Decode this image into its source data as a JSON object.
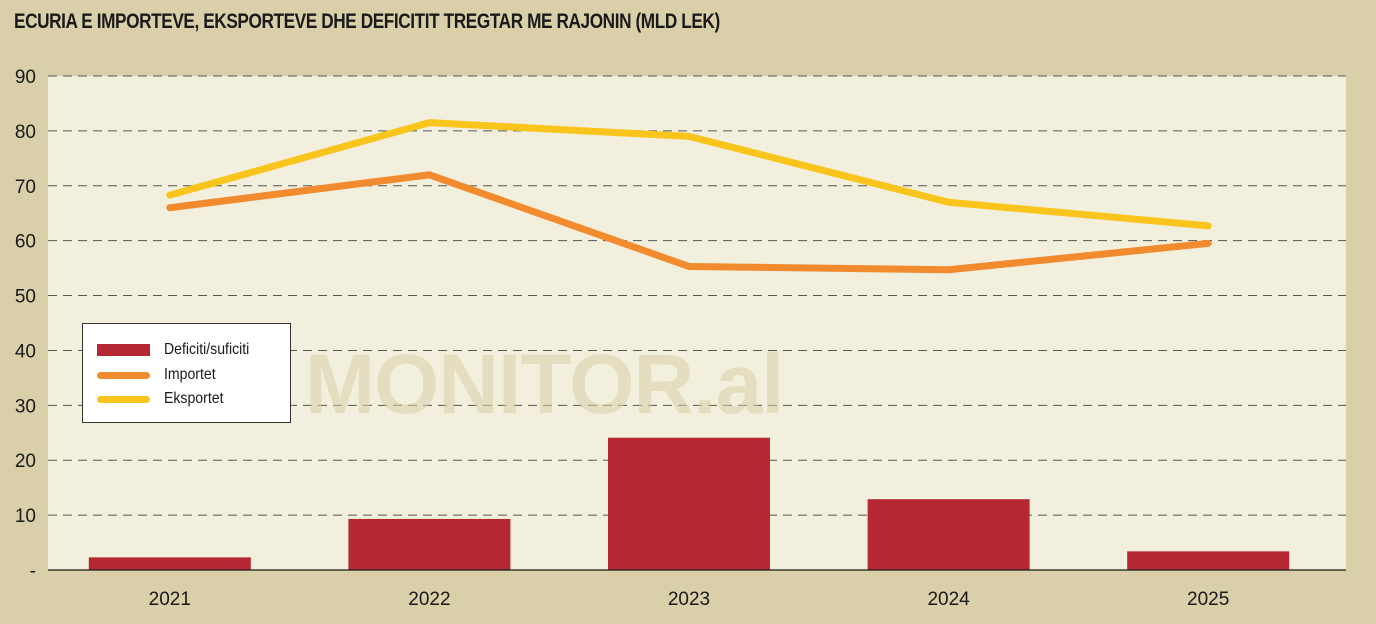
{
  "title": "ECURIA E IMPORTEVE, EKSPORTEVE DHE DEFICITIT TREGTAR ME RAJONIN (MLD LEK)",
  "watermark": "MONITOR.al",
  "colors": {
    "background": "#d9cfa9",
    "plot_bg": "#f3efdd",
    "deficit": "#b52832",
    "imports": "#f28a2e",
    "exports": "#f9c51c"
  },
  "legend": {
    "items": [
      {
        "label": "Deficiti/suficiti",
        "type": "bar"
      },
      {
        "label": "Importet",
        "type": "line"
      },
      {
        "label": "Eksportet",
        "type": "line"
      }
    ]
  },
  "chart_data": {
    "type": "bar",
    "categories": [
      "2021",
      "2022",
      "2023",
      "2024",
      "2025"
    ],
    "y_ticks": [
      "-",
      "10",
      "20",
      "30",
      "40",
      "50",
      "60",
      "70",
      "80",
      "90"
    ],
    "ylim": [
      0,
      90
    ],
    "grid": true,
    "legend_position": "left-middle",
    "series": [
      {
        "name": "Deficiti/suficiti",
        "type": "bar",
        "values": [
          2.3,
          9.3,
          24.1,
          12.9,
          3.4
        ]
      },
      {
        "name": "Importet",
        "type": "line",
        "values": [
          66,
          72,
          55.3,
          54.7,
          59.5
        ]
      },
      {
        "name": "Eksportet",
        "type": "line",
        "values": [
          68.3,
          81.5,
          79,
          67,
          62.7
        ]
      }
    ]
  }
}
